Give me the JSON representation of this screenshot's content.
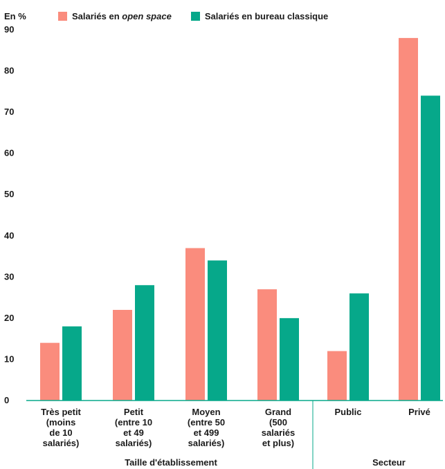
{
  "chart_data": {
    "type": "bar",
    "ylabel": "En %",
    "ylim": [
      0,
      90
    ],
    "yticks": [
      0,
      10,
      20,
      30,
      40,
      50,
      60,
      70,
      80,
      90
    ],
    "categories": [
      [
        "Très petit",
        "(moins",
        "de 10",
        "salariés)"
      ],
      [
        "Petit",
        "(entre 10",
        "et 49",
        "salariés)"
      ],
      [
        "Moyen",
        "(entre 50",
        "et 499",
        "salariés)"
      ],
      [
        "Grand",
        "(500",
        "salariés",
        "et plus)"
      ],
      [
        "Public"
      ],
      [
        "Privé"
      ]
    ],
    "groups": [
      {
        "label": "Taille d'établissement",
        "categories": [
          0,
          1,
          2,
          3
        ]
      },
      {
        "label": "Secteur",
        "categories": [
          4,
          5
        ]
      }
    ],
    "series": [
      {
        "name": "Salariés en open space",
        "name_prefix": "Salariés en ",
        "name_italic": "open space",
        "color": "#fa8c7d",
        "values": [
          14,
          22,
          37,
          27,
          12,
          88
        ]
      },
      {
        "name": "Salariés en bureau classique",
        "color": "#06a88a",
        "values": [
          18,
          28,
          34,
          20,
          26,
          74
        ]
      }
    ],
    "grid": false,
    "legend": "top"
  }
}
